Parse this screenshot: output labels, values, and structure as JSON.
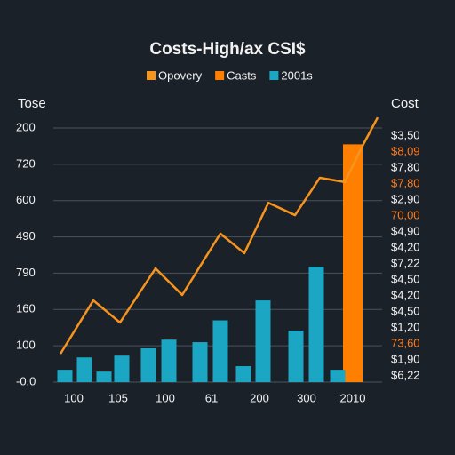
{
  "chart_data": {
    "type": "bar_line",
    "title": "Costs-High/ax CSI$",
    "y_label": "Tose",
    "y2_label": "Cost",
    "grid": true,
    "xlim": [
      0,
      37
    ],
    "xticks": [
      {
        "value": 2.3,
        "label": "100"
      },
      {
        "value": 7.3,
        "label": "105"
      },
      {
        "value": 12.6,
        "label": "100"
      },
      {
        "value": 17.8,
        "label": "61"
      },
      {
        "value": 23.2,
        "label": "200"
      },
      {
        "value": 28.5,
        "label": "300"
      },
      {
        "value": 33.7,
        "label": "2010"
      }
    ],
    "ylim": [
      0,
      7
    ],
    "yticks": [
      {
        "value": 0,
        "label": "-0,0"
      },
      {
        "value": 1,
        "label": "100"
      },
      {
        "value": 2,
        "label": "160"
      },
      {
        "value": 3,
        "label": "790"
      },
      {
        "value": 4,
        "label": "490"
      },
      {
        "value": 5,
        "label": "600"
      },
      {
        "value": 6,
        "label": "720"
      },
      {
        "value": 7,
        "label": "200"
      }
    ],
    "y2lim": [
      0,
      15
    ],
    "y2ticks": [
      {
        "value": 0,
        "label": "$6,22"
      },
      {
        "value": 1,
        "label": "$1,90"
      },
      {
        "value": 2,
        "label": "73,60",
        "color": "#ff7a1a"
      },
      {
        "value": 3,
        "label": "$1,20"
      },
      {
        "value": 4,
        "label": "$4,50"
      },
      {
        "value": 5,
        "label": "$4,20"
      },
      {
        "value": 6,
        "label": "$4,50"
      },
      {
        "value": 7,
        "label": "$7,22"
      },
      {
        "value": 8,
        "label": "$4,20"
      },
      {
        "value": 9,
        "label": "$4,90"
      },
      {
        "value": 10,
        "label": "70,00",
        "color": "#ff7a1a"
      },
      {
        "value": 11,
        "label": "$2,90"
      },
      {
        "value": 12,
        "label": "$7,80",
        "color": "#ff7a1a"
      },
      {
        "value": 13,
        "label": "$7,80"
      },
      {
        "value": 14,
        "label": "$8,09",
        "color": "#ff7a1a"
      },
      {
        "value": 15,
        "label": "$3,50"
      }
    ],
    "series": [
      {
        "name": "Opovery",
        "type": "line",
        "color": "#f7941d",
        "x": [
          0.8,
          4.5,
          7.5,
          11.5,
          14.5,
          18.8,
          21.5,
          24.2,
          27.2,
          30,
          32.8,
          34.8,
          36.5
        ],
        "values": [
          0.78,
          2.25,
          1.64,
          3.13,
          2.4,
          4.09,
          3.55,
          4.94,
          4.6,
          5.63,
          5.51,
          6.51,
          7.29
        ]
      },
      {
        "name": "Casts",
        "type": "bar",
        "color": "#ff7f00",
        "width": 2.2,
        "x": [
          33.7
        ],
        "values": [
          6.55
        ]
      },
      {
        "name": "2001s",
        "type": "bar",
        "color": "#1ba6c4",
        "width": 1.7,
        "x": [
          1.3,
          3.5,
          5.7,
          7.7,
          10.7,
          13,
          16.5,
          18.8,
          21.4,
          23.6,
          27.3,
          29.6,
          32
        ],
        "values": [
          0.34,
          0.68,
          0.29,
          0.73,
          0.93,
          1.17,
          1.1,
          1.7,
          0.44,
          2.25,
          1.42,
          3.18,
          0.34
        ]
      }
    ]
  }
}
